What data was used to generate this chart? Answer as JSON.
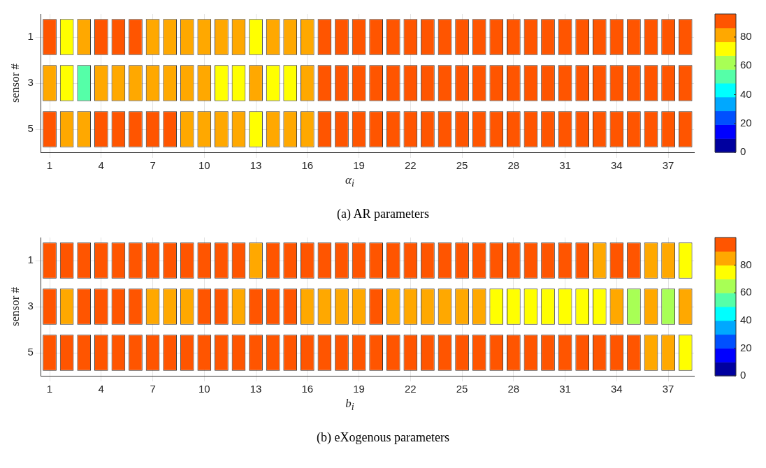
{
  "chart_data": [
    {
      "type": "heatmap",
      "title": "(a) AR parameters",
      "xlabel": "α$_{i}$",
      "ylabel": "sensor #",
      "grid": true,
      "categories": [
        "1",
        null,
        null,
        "4",
        null,
        null,
        "7",
        null,
        null,
        "10",
        null,
        null,
        "13",
        null,
        null,
        "16",
        null,
        null,
        "19",
        null,
        null,
        "22",
        null,
        null,
        "25",
        null,
        null,
        "28",
        null,
        null,
        "31",
        null,
        null,
        "34",
        null,
        null,
        "37",
        null
      ],
      "y_categories": [
        "1",
        "3",
        "5"
      ],
      "cells": [
        [
          91,
          72,
          81,
          91,
          91,
          91,
          81,
          81,
          81,
          81,
          81,
          81,
          72,
          81,
          81,
          81,
          91,
          91,
          91,
          91,
          91,
          91,
          91,
          91,
          91,
          91,
          91,
          91,
          91,
          91,
          91,
          91,
          91,
          91,
          91,
          91,
          91,
          91
        ],
        [
          81,
          72,
          53,
          81,
          81,
          81,
          81,
          81,
          81,
          81,
          72,
          72,
          81,
          72,
          72,
          81,
          91,
          91,
          91,
          91,
          91,
          91,
          91,
          91,
          91,
          91,
          91,
          91,
          91,
          91,
          91,
          91,
          91,
          91,
          91,
          91,
          91,
          91
        ],
        [
          91,
          81,
          81,
          91,
          91,
          91,
          91,
          91,
          81,
          81,
          81,
          81,
          72,
          81,
          81,
          81,
          91,
          91,
          91,
          91,
          91,
          91,
          91,
          91,
          91,
          91,
          91,
          91,
          91,
          91,
          91,
          91,
          91,
          91,
          91,
          91,
          91,
          91
        ]
      ],
      "clim": [
        0,
        96
      ],
      "cticks": [
        0,
        20,
        40,
        60,
        80
      ],
      "colors": [
        "#00009f",
        "#0000ff",
        "#0050ff",
        "#00a8ff",
        "#00ffff",
        "#55ffa8",
        "#a8ff55",
        "#ffff00",
        "#ffa800",
        "#ff5500"
      ]
    },
    {
      "type": "heatmap",
      "title": "(b) eXogenous parameters",
      "xlabel": "b$_{i}$",
      "ylabel": "sensor #",
      "grid": true,
      "categories": [
        "1",
        null,
        null,
        "4",
        null,
        null,
        "7",
        null,
        null,
        "10",
        null,
        null,
        "13",
        null,
        null,
        "16",
        null,
        null,
        "19",
        null,
        null,
        "22",
        null,
        null,
        "25",
        null,
        null,
        "28",
        null,
        null,
        "31",
        null,
        null,
        "34",
        null,
        null,
        "37",
        null
      ],
      "y_categories": [
        "1",
        "3",
        "5"
      ],
      "cells": [
        [
          95,
          95,
          95,
          95,
          95,
          95,
          95,
          95,
          95,
          95,
          95,
          95,
          85,
          95,
          95,
          95,
          95,
          95,
          95,
          95,
          95,
          95,
          95,
          95,
          95,
          95,
          95,
          95,
          95,
          95,
          95,
          95,
          85,
          95,
          95,
          85,
          85,
          75
        ],
        [
          95,
          85,
          95,
          95,
          95,
          95,
          85,
          85,
          85,
          95,
          95,
          85,
          95,
          95,
          95,
          85,
          85,
          85,
          85,
          95,
          85,
          85,
          85,
          85,
          85,
          85,
          75,
          75,
          75,
          75,
          75,
          75,
          75,
          85,
          65,
          85,
          65,
          85
        ],
        [
          95,
          95,
          95,
          95,
          95,
          95,
          95,
          95,
          95,
          95,
          95,
          95,
          95,
          95,
          95,
          95,
          95,
          95,
          95,
          95,
          95,
          95,
          95,
          95,
          95,
          95,
          95,
          95,
          95,
          95,
          95,
          95,
          95,
          95,
          95,
          85,
          85,
          75
        ]
      ],
      "clim": [
        0,
        100
      ],
      "cticks": [
        0,
        20,
        40,
        60,
        80
      ],
      "colors": [
        "#00009f",
        "#0000ff",
        "#0050ff",
        "#00a8ff",
        "#00ffff",
        "#55ffa8",
        "#a8ff55",
        "#ffff00",
        "#ffa800",
        "#ff5500"
      ]
    }
  ]
}
